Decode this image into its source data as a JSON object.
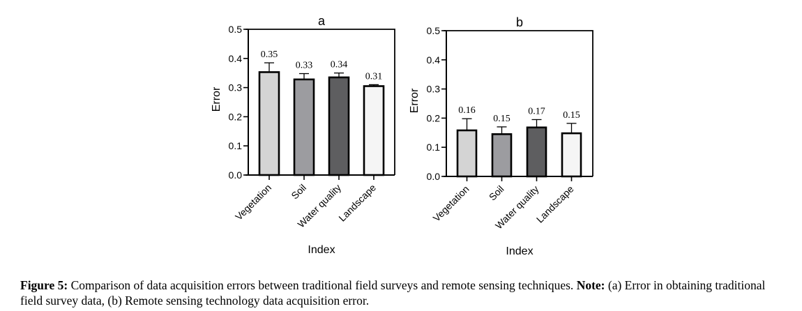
{
  "chart_data": [
    {
      "panel": "a",
      "type": "bar",
      "title": "a",
      "xlabel": "Index",
      "ylabel": "Error",
      "ylim": [
        0,
        0.5
      ],
      "yticks": [
        "0.0",
        "0.1",
        "0.2",
        "0.3",
        "0.4",
        "0.5"
      ],
      "categories": [
        "Vegetation",
        "Soil",
        "Water quality",
        "Landscape"
      ],
      "values": [
        0.35,
        0.33,
        0.34,
        0.31
      ],
      "value_labels": [
        "0.35",
        "0.33",
        "0.34",
        "0.31"
      ],
      "bar_values": [
        0.353,
        0.328,
        0.335,
        0.305
      ],
      "error_upper": [
        0.385,
        0.348,
        0.35,
        0.31
      ],
      "colors": [
        "#d4d4d4",
        "#9c9ca0",
        "#5e5e60",
        "#f5f5f5"
      ]
    },
    {
      "panel": "b",
      "type": "bar",
      "title": "b",
      "xlabel": "Index",
      "ylabel": "Error",
      "ylim": [
        0,
        0.5
      ],
      "yticks": [
        "0.0",
        "0.1",
        "0.2",
        "0.3",
        "0.4",
        "0.5"
      ],
      "categories": [
        "Vegetation",
        "Soil",
        "Water quality",
        "Landscape"
      ],
      "values": [
        0.16,
        0.15,
        0.17,
        0.15
      ],
      "value_labels": [
        "0.16",
        "0.15",
        "0.17",
        "0.15"
      ],
      "bar_values": [
        0.158,
        0.145,
        0.168,
        0.148
      ],
      "error_upper": [
        0.198,
        0.17,
        0.195,
        0.182
      ],
      "colors": [
        "#d4d4d4",
        "#9c9ca0",
        "#5e5e60",
        "#f5f5f5"
      ]
    }
  ],
  "caption": {
    "label": "Figure 5:",
    "text": " Comparison of data acquisition errors between traditional field surveys and remote sensing techniques. ",
    "note_label": "Note:",
    "note_text": " (a) Error in obtaining traditional field survey data, (b) Remote sensing technology data acquisition error."
  }
}
